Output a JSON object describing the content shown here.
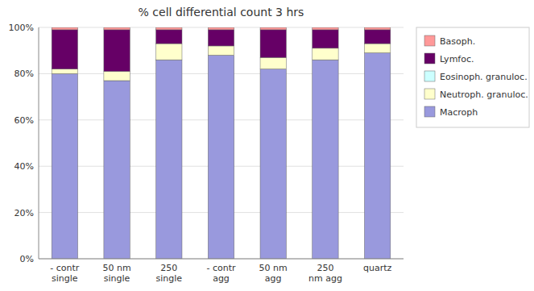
{
  "chart_data": {
    "type": "bar",
    "stacked": true,
    "title": "% cell differential count 3 hrs",
    "categories": [
      "- contr\nsingle",
      "50 nm\nsingle",
      "250\nsingle",
      "- contr\nagg",
      "50 nm\nagg",
      "250\nnm agg",
      "quartz"
    ],
    "series": [
      {
        "name": "Macroph",
        "color": "#9999DD",
        "values": [
          80,
          77,
          86,
          88,
          82,
          86,
          89
        ]
      },
      {
        "name": "Neutroph. granuloc.",
        "color": "#FFFFCC",
        "values": [
          2,
          4,
          7,
          4,
          5,
          5,
          4
        ]
      },
      {
        "name": "Eosinoph. granuloc.",
        "color": "#CCFFFF",
        "values": [
          0,
          0,
          0,
          0,
          0,
          0,
          0
        ]
      },
      {
        "name": "Lymfoc.",
        "color": "#660066",
        "values": [
          17,
          18,
          6,
          7,
          12,
          8,
          6
        ]
      },
      {
        "name": "Basoph.",
        "color": "#FF9999",
        "values": [
          1,
          1,
          1,
          1,
          1,
          1,
          1
        ]
      }
    ],
    "ylim": [
      0,
      100
    ],
    "yticks": [
      {
        "value": 0,
        "label": "0%"
      },
      {
        "value": 20,
        "label": "20%"
      },
      {
        "value": 40,
        "label": "40%"
      },
      {
        "value": 60,
        "label": "60%"
      },
      {
        "value": 80,
        "label": "80%"
      },
      {
        "value": 100,
        "label": "100%"
      }
    ],
    "grid": true,
    "legend": "right"
  }
}
